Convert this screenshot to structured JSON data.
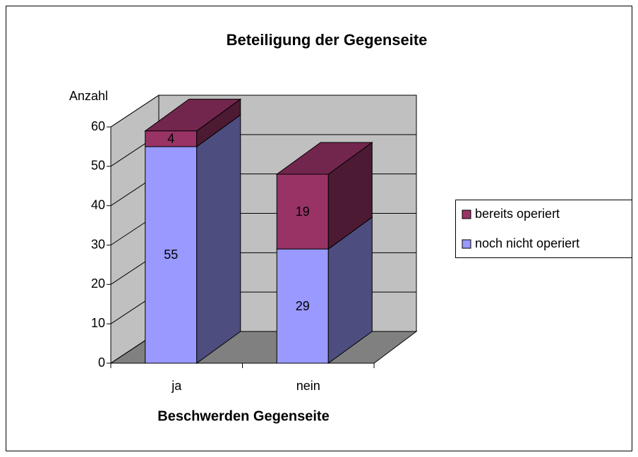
{
  "chart_data": {
    "type": "bar3d_stacked",
    "title": "Beteiligung der Gegenseite",
    "y_label": "Anzahl",
    "x_label": "Beschwerden Gegenseite",
    "categories": [
      "ja",
      "nein"
    ],
    "series": [
      {
        "name": "noch nicht operiert",
        "color": "#9999ff",
        "values": [
          55,
          29
        ]
      },
      {
        "name": "bereits operiert",
        "color": "#993366",
        "values": [
          4,
          19
        ]
      }
    ],
    "ylim": [
      0,
      60
    ],
    "yticks": [
      0,
      10,
      20,
      30,
      40,
      50,
      60
    ],
    "grid": true
  }
}
